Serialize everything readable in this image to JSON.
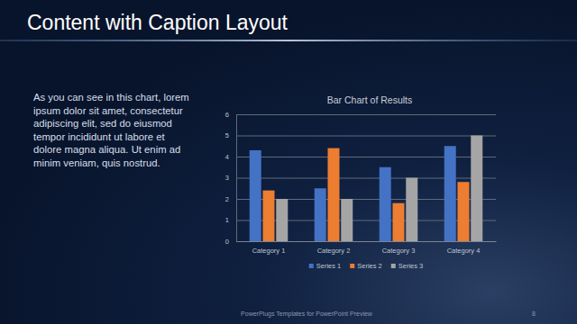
{
  "slide": {
    "title": "Content with Caption Layout",
    "caption": [
      "As you can see in this chart, lorem",
      "ipsum dolor sit amet, consectetur",
      "adipiscing elit, sed do eiusmod",
      "tempor incididunt ut labore et",
      "dolore magna aliqua. Ut enim ad",
      "minim veniam, quis nostrud."
    ],
    "footer": "PowerPlugs Templates for PowerPoint Preview",
    "page": "8"
  },
  "chart_data": {
    "type": "bar",
    "title": "Bar Chart of Results",
    "categories": [
      "Category 1",
      "Category 2",
      "Category 3",
      "Category 4"
    ],
    "series": [
      {
        "name": "Series 1",
        "color": "#4472c4",
        "values": [
          4.3,
          2.5,
          3.5,
          4.5
        ]
      },
      {
        "name": "Series 2",
        "color": "#ed7d31",
        "values": [
          2.4,
          4.4,
          1.8,
          2.8
        ]
      },
      {
        "name": "Series 3",
        "color": "#a5a5a5",
        "values": [
          2,
          2,
          3,
          5
        ]
      }
    ],
    "ylim": [
      0,
      6
    ],
    "yticks": [
      0,
      1,
      2,
      3,
      4,
      5,
      6
    ],
    "grid": true,
    "legend": "bottom"
  }
}
